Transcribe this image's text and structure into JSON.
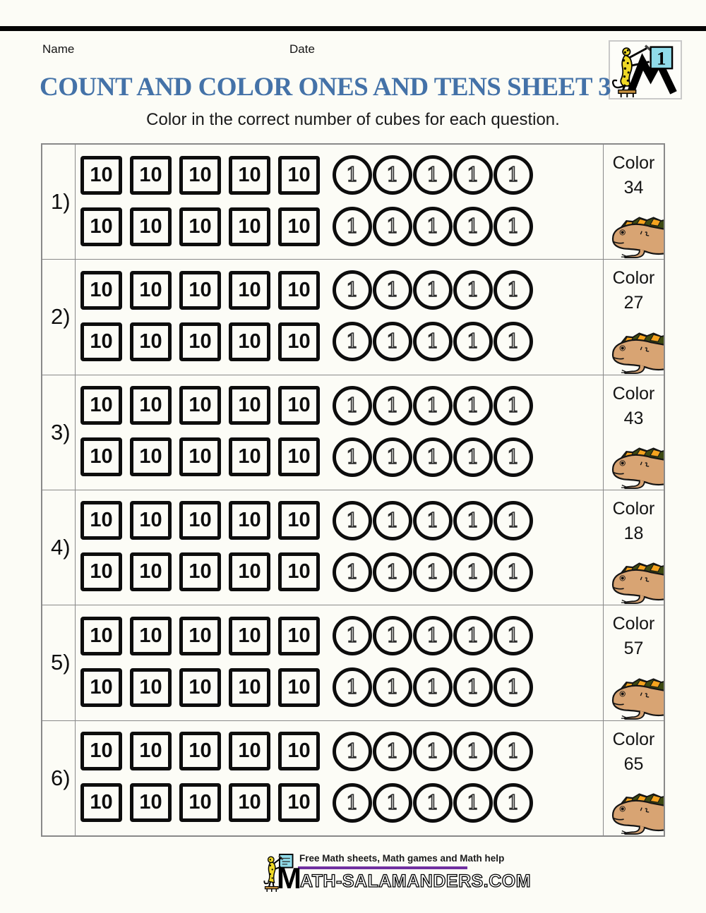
{
  "header": {
    "name_label": "Name",
    "date_label": "Date",
    "title": "COUNT AND COLOR ONES AND TENS SHEET 3",
    "subtitle": "Color in the correct number of cubes for each question.",
    "logo_number": "1"
  },
  "worksheet": {
    "color_word": "Color",
    "ten_label": "10",
    "one_label": "1",
    "tens_per_line": 5,
    "ones_per_line": 5,
    "lines_per_row": 2,
    "rows": [
      {
        "label": "1)",
        "count": "34"
      },
      {
        "label": "2)",
        "count": "27"
      },
      {
        "label": "3)",
        "count": "43"
      },
      {
        "label": "4)",
        "count": "18"
      },
      {
        "label": "5)",
        "count": "57"
      },
      {
        "label": "6)",
        "count": "65"
      }
    ]
  },
  "footer": {
    "tagline": "Free Math sheets, Math games and Math help",
    "wordmark_initial": "M",
    "wordmark_rest": "ATH-SALAMANDERS.COM"
  },
  "colors": {
    "title_blue": "#4472A8",
    "footer_rule_purple": "#7030A0",
    "logo_card_cyan": "#90DCEA",
    "salamander_yellow": "#EFD926",
    "iguana_body_tan": "#D8A473",
    "iguana_crest_orange": "#F5A31E",
    "iguana_crest_dark": "#3D4A12"
  }
}
